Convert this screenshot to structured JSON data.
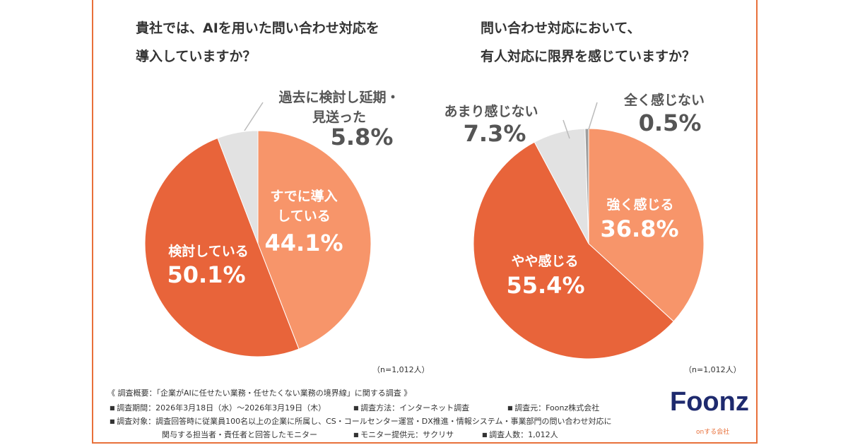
{
  "chart_data": [
    {
      "type": "pie",
      "title": "貴社では、AIを用いた問い合わせ対応を\n導入していますか？",
      "categories": [
        "すでに導入\nしている",
        "検討している",
        "過去に検討し延期・\n見送った"
      ],
      "values": [
        44.1,
        50.1,
        5.8
      ],
      "value_labels": [
        "44.1%",
        "50.1%",
        "5.8%"
      ],
      "colors": [
        "#f7956a",
        "#e8643a",
        "#e2e2e2"
      ],
      "note": "（n=1,012人）"
    },
    {
      "type": "pie",
      "title": "問い合わせ対応において、\n有人対応に限界を感じていますか？",
      "categories": [
        "強く感じる",
        "やや感じる",
        "あまり感じない",
        "全く感じない"
      ],
      "values": [
        36.8,
        55.4,
        7.3,
        0.5
      ],
      "value_labels": [
        "36.8%",
        "55.4%",
        "7.3%",
        "0.5%"
      ],
      "colors": [
        "#f7956a",
        "#e8643a",
        "#e2e2e2",
        "#9e9e9e"
      ],
      "note": "（n=1,012人）"
    }
  ],
  "footer": {
    "heading": "《 調査概要：「企業がAIに任せたい業務・任せたくない業務の境界線」に関する調査 》",
    "items": [
      "調査期間：2026年3月18日（水）～2026年3月19日（木）",
      "調査方法：インターネット調査",
      "調査元：Foonz株式会社",
      "調査対象：調査回答時に従業員100名以上の企業に所属し、CS・コールセンター運営・DX推進・情報システム・事業部門の問い合わせ対応に\n関与する担当者・責任者と回答したモニター",
      "モニター提供元：サクリサ",
      "調査人数：1,012人"
    ]
  },
  "logo": {
    "name": "Foonz",
    "tagline": "onする会社"
  }
}
